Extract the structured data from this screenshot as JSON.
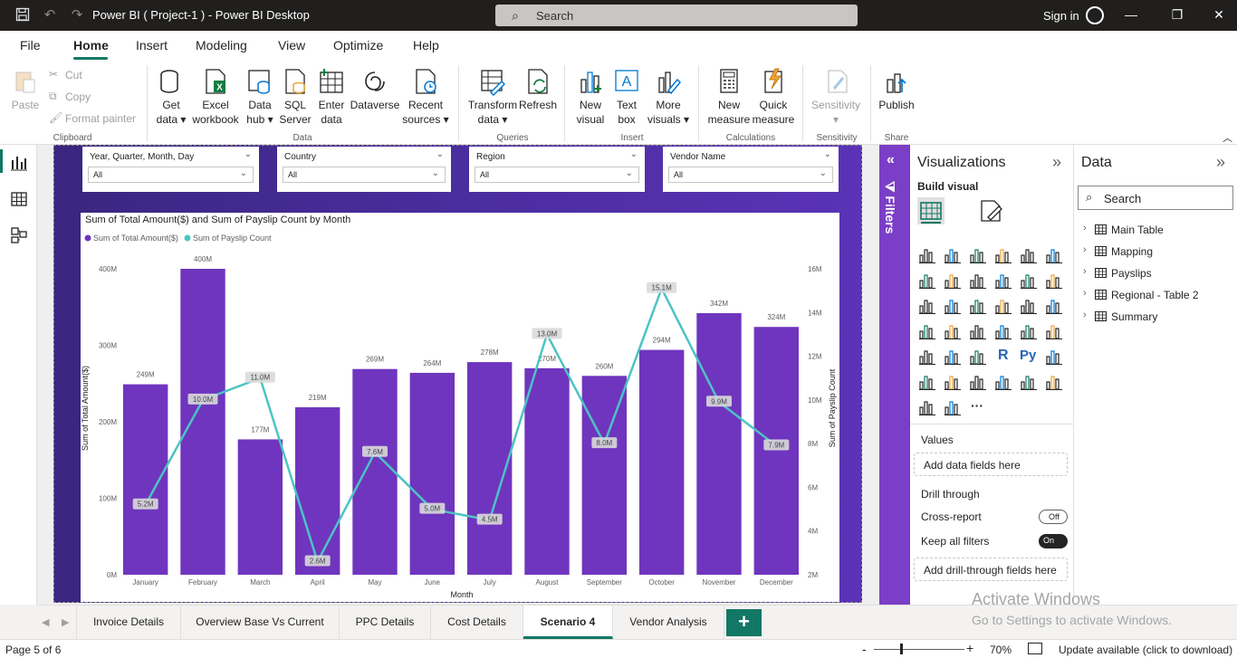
{
  "titlebar": {
    "title": "Power BI ( Project-1 ) - Power BI Desktop",
    "search_placeholder": "Search",
    "signin": "Sign in"
  },
  "menu": {
    "items": [
      "File",
      "Home",
      "Insert",
      "Modeling",
      "View",
      "Optimize",
      "Help"
    ],
    "active": "Home"
  },
  "ribbon": {
    "clipboard": {
      "paste": "Paste",
      "cut": "Cut",
      "copy": "Copy",
      "format_painter": "Format painter",
      "label": "Clipboard"
    },
    "data": {
      "get_data": [
        "Get",
        "data"
      ],
      "excel": [
        "Excel",
        "workbook"
      ],
      "data_hub": [
        "Data",
        "hub"
      ],
      "sql": [
        "SQL",
        "Server"
      ],
      "enter_data": [
        "Enter",
        "data"
      ],
      "dataverse": [
        "Dataverse"
      ],
      "recent": [
        "Recent",
        "sources"
      ],
      "label": "Data"
    },
    "queries": {
      "transform": [
        "Transform",
        "data"
      ],
      "refresh": [
        "Refresh"
      ],
      "label": "Queries"
    },
    "insert": {
      "new_visual": [
        "New",
        "visual"
      ],
      "text_box": [
        "Text",
        "box"
      ],
      "more_visuals": [
        "More",
        "visuals"
      ],
      "label": "Insert"
    },
    "calculations": {
      "new_measure": [
        "New",
        "measure"
      ],
      "quick_measure": [
        "Quick",
        "measure"
      ],
      "label": "Calculations"
    },
    "sensitivity": {
      "btn": [
        "Sensitivity"
      ],
      "label": "Sensitivity"
    },
    "share": {
      "publish": [
        "Publish"
      ],
      "label": "Share"
    }
  },
  "slicers": [
    {
      "title": "Year, Quarter, Month, Day",
      "value": "All"
    },
    {
      "title": "Country",
      "value": "All"
    },
    {
      "title": "Region",
      "value": "All"
    },
    {
      "title": "Vendor Name",
      "value": "All"
    }
  ],
  "chart_data": {
    "type": "bar",
    "title": "Sum of Total Amount($) and Sum of Payslip Count by Month",
    "xlabel": "Month",
    "ylabel": "Sum of Total Amount($)",
    "y2label": "Sum of Payslip Count",
    "categories": [
      "January",
      "February",
      "March",
      "April",
      "May",
      "June",
      "July",
      "August",
      "September",
      "October",
      "November",
      "December"
    ],
    "series": [
      {
        "name": "Sum of Total Amount($)",
        "type": "bar",
        "color": "#6f35be",
        "values": [
          249,
          400,
          177,
          219,
          269,
          264,
          278,
          270,
          260,
          294,
          342,
          324
        ],
        "labels": [
          "249M",
          "400M",
          "177M",
          "219M",
          "269M",
          "264M",
          "278M",
          "270M",
          "260M",
          "294M",
          "342M",
          "324M"
        ]
      },
      {
        "name": "Sum of Payslip Count",
        "type": "line",
        "axis": "y2",
        "color": "#4dc3c3",
        "values": [
          5.2,
          10.0,
          11.0,
          2.6,
          7.6,
          5.0,
          4.5,
          13.0,
          8.0,
          15.1,
          9.9,
          7.9
        ],
        "labels": [
          "5.2M",
          "10.0M",
          "11.0M",
          "2.6M",
          "7.6M",
          "5.0M",
          "4.5M",
          "13.0M",
          "8.0M",
          "15.1M",
          "9.9M",
          "7.9M"
        ]
      }
    ],
    "ylim": [
      0,
      400
    ],
    "yticks": [
      "0M",
      "100M",
      "200M",
      "300M",
      "400M"
    ],
    "y2lim": [
      2,
      16
    ],
    "y2ticks": [
      "2M",
      "4M",
      "6M",
      "8M",
      "10M",
      "12M",
      "14M",
      "16M"
    ],
    "legend": "top-left",
    "grid": false
  },
  "filters": {
    "label": "Filters"
  },
  "visualizations": {
    "title": "Visualizations",
    "build_visual": "Build visual",
    "icons": [
      "stacked-bar-chart-icon",
      "stacked-column-chart-icon",
      "clustered-bar-chart-icon",
      "clustered-column-chart-icon",
      "100-stacked-bar-icon",
      "100-stacked-column-icon",
      "line-chart-icon",
      "area-chart-icon",
      "stacked-area-icon",
      "line-clustered-column-icon",
      "line-stacked-column-icon",
      "ribbon-chart-icon",
      "waterfall-icon",
      "funnel-icon",
      "scatter-icon",
      "pie-chart-icon",
      "donut-chart-icon",
      "treemap-icon",
      "map-icon",
      "filled-map-icon",
      "gauge-icon",
      "card-icon",
      "multi-row-card-icon",
      "kpi-icon",
      "slicer-icon",
      "table-icon",
      "matrix-icon",
      "r-visual-icon",
      "python-visual-icon",
      "key-influencers-icon",
      "decomposition-tree-icon",
      "qa-icon",
      "smart-narrative-icon",
      "metrics-icon",
      "paginated-report-icon",
      "arcgis-icon",
      "power-apps-icon",
      "power-automate-icon",
      "more-visuals-icon"
    ],
    "r_label": "R",
    "py_label": "Py",
    "more": "···",
    "values_label": "Values",
    "values_placeholder": "Add data fields here",
    "drill_through": "Drill through",
    "cross_report": "Cross-report",
    "cross_report_state": "Off",
    "keep_all_filters": "Keep all filters",
    "keep_all_filters_state": "On",
    "drill_placeholder": "Add drill-through fields here"
  },
  "data_pane": {
    "title": "Data",
    "search_placeholder": "Search",
    "tables": [
      "Main Table",
      "Mapping",
      "Payslips",
      "Regional - Table 2",
      "Summary"
    ]
  },
  "tabs": {
    "pages": [
      "Invoice Details",
      "Overview Base Vs Current",
      "PPC Details",
      "Cost Details",
      "Scenario 4",
      "Vendor Analysis"
    ],
    "active": "Scenario 4",
    "add": "+"
  },
  "watermark": {
    "line1": "Activate Windows",
    "line2": "Go to Settings to activate Windows."
  },
  "status": {
    "page": "Page 5 of 6",
    "zoom_minus": "-",
    "zoom_plus": "+",
    "zoom": "70%",
    "update": "Update available (click to download)"
  },
  "colors": {
    "accent": "#117865",
    "report_bg": "#4a2d9e",
    "filters_strip": "#7b3ec6",
    "bar": "#6f35be",
    "line": "#4dc3c3"
  }
}
